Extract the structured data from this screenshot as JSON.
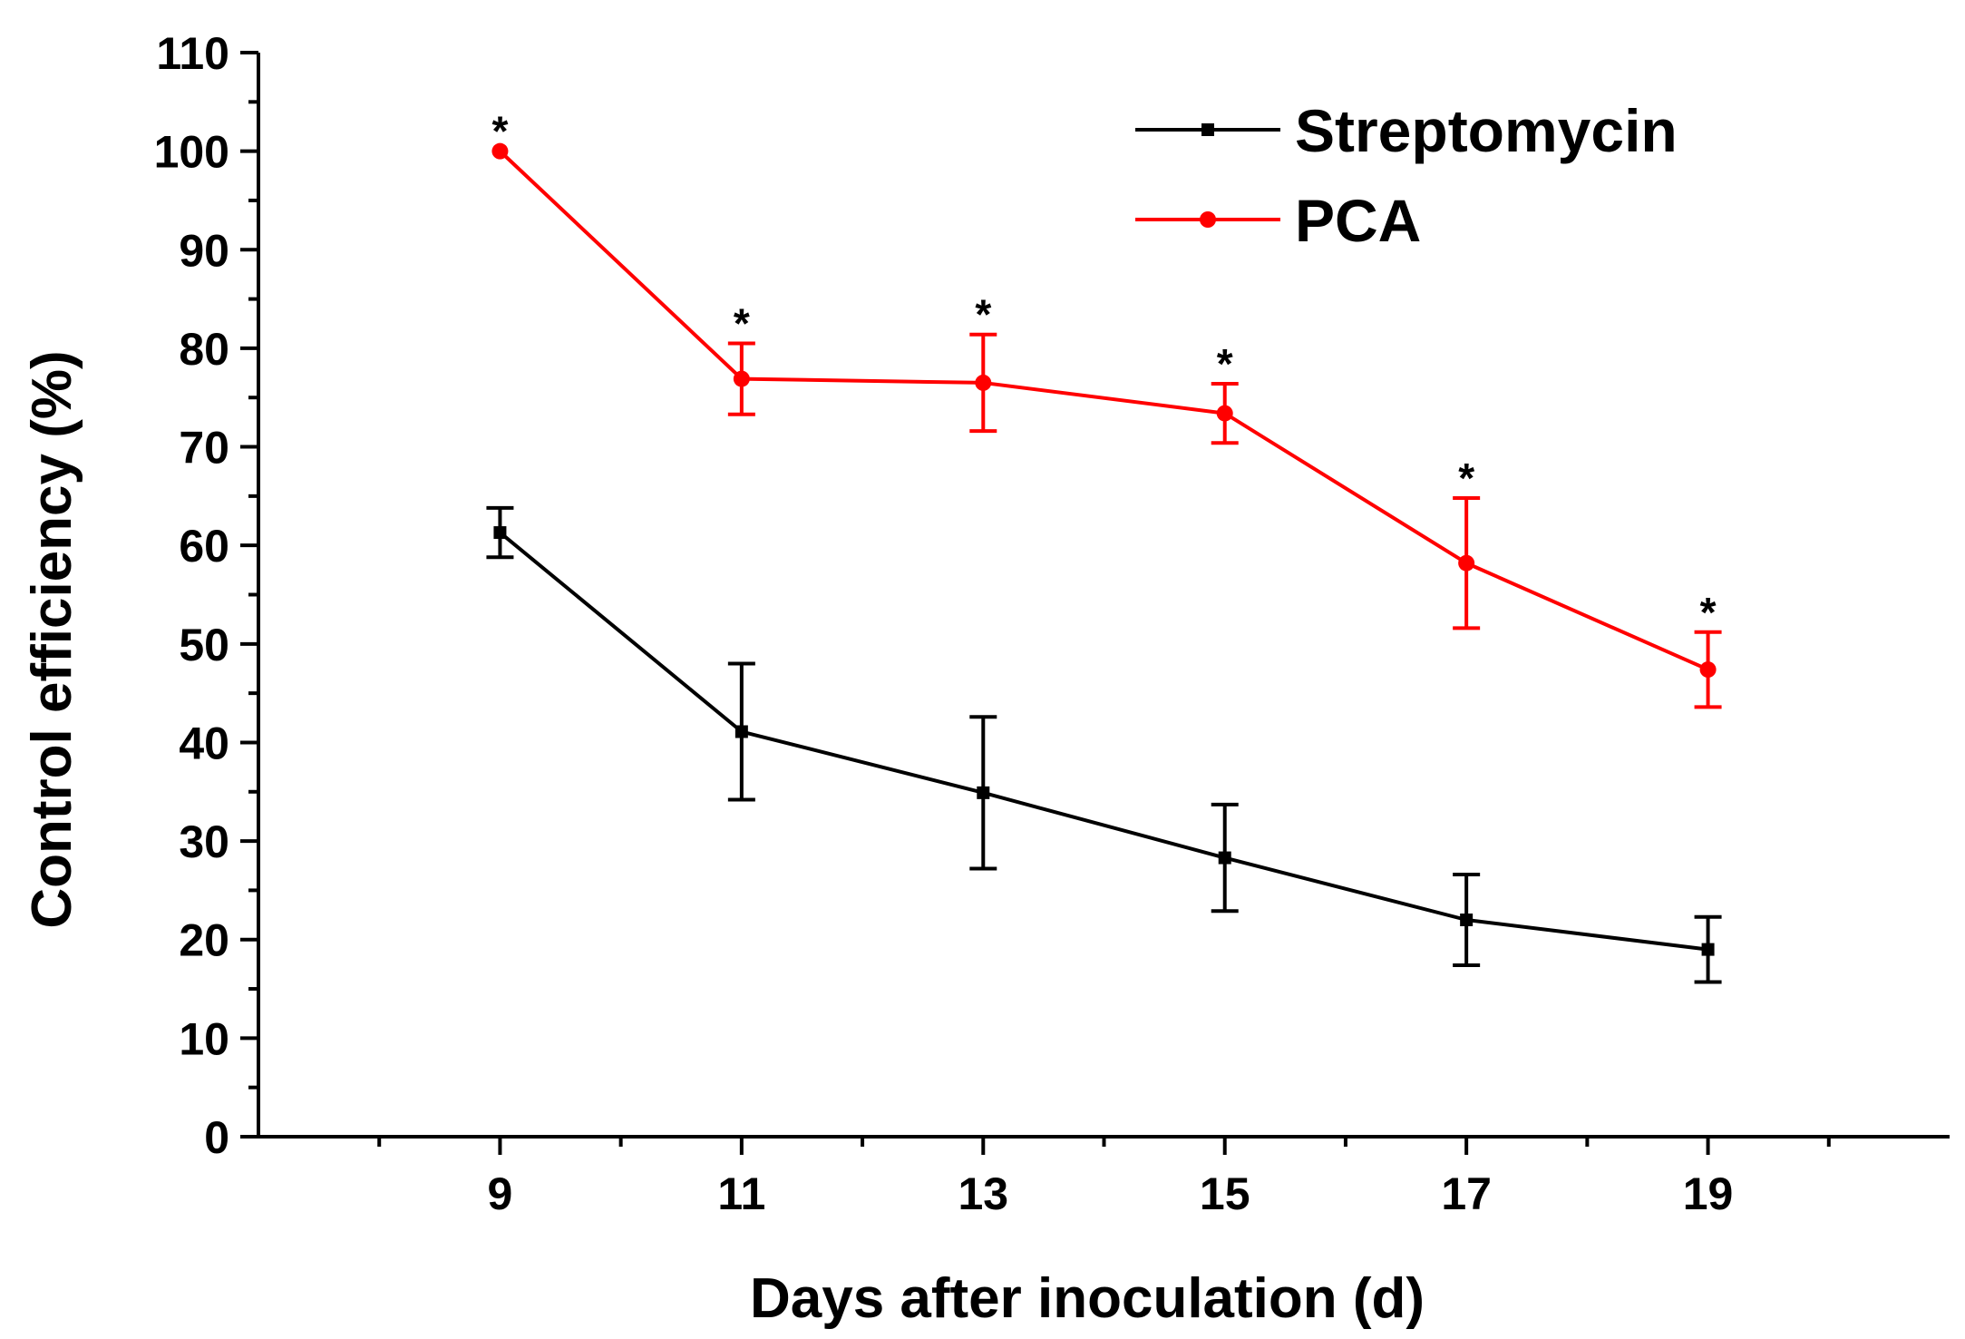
{
  "chart_data": {
    "type": "line",
    "title": "",
    "xlabel": "Days after inoculation (d)",
    "ylabel": "Control efficiency (%)",
    "x": [
      9,
      11,
      13,
      15,
      17,
      19
    ],
    "x_tick_labels": [
      "9",
      "11",
      "13",
      "15",
      "17",
      "19"
    ],
    "xlim": [
      7,
      21
    ],
    "ylim": [
      0,
      110
    ],
    "y_ticks": [
      0,
      10,
      20,
      30,
      40,
      50,
      60,
      70,
      80,
      90,
      100,
      110
    ],
    "y_tick_labels": [
      "0",
      "10",
      "20",
      "30",
      "40",
      "50",
      "60",
      "70",
      "80",
      "90",
      "100",
      "110"
    ],
    "grid": false,
    "legend_position": "top-right",
    "series": [
      {
        "name": "Streptomycin",
        "color": "#000000",
        "marker": "square",
        "values": [
          61.3,
          41.1,
          34.9,
          28.3,
          22.0,
          19.0
        ],
        "errors": [
          2.5,
          6.9,
          7.7,
          5.4,
          4.6,
          3.3
        ],
        "annotations": [
          "",
          "",
          "",
          "",
          "",
          ""
        ]
      },
      {
        "name": "PCA",
        "color": "#ff0000",
        "marker": "circle",
        "values": [
          100.0,
          76.9,
          76.5,
          73.4,
          58.2,
          47.4
        ],
        "errors": [
          0,
          3.6,
          4.9,
          3.0,
          6.6,
          3.8
        ],
        "annotations": [
          "*",
          "*",
          "*",
          "*",
          "*",
          "*"
        ]
      }
    ]
  }
}
